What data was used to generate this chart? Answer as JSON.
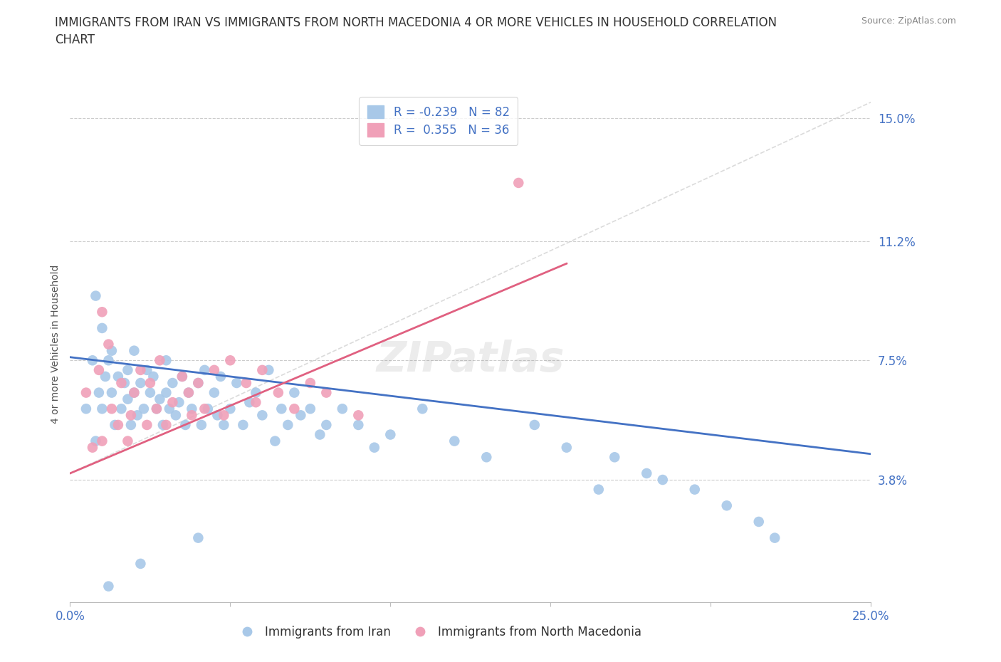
{
  "title": "IMMIGRANTS FROM IRAN VS IMMIGRANTS FROM NORTH MACEDONIA 4 OR MORE VEHICLES IN HOUSEHOLD CORRELATION\nCHART",
  "source_text": "Source: ZipAtlas.com",
  "ylabel": "4 or more Vehicles in Household",
  "xlim": [
    0.0,
    0.25
  ],
  "ylim": [
    0.0,
    0.16
  ],
  "xticks": [
    0.0,
    0.05,
    0.1,
    0.15,
    0.2,
    0.25
  ],
  "xticklabels": [
    "0.0%",
    "",
    "",
    "",
    "",
    "25.0%"
  ],
  "ytick_positions": [
    0.0,
    0.038,
    0.075,
    0.112,
    0.15
  ],
  "yticklabels": [
    "",
    "3.8%",
    "7.5%",
    "11.2%",
    "15.0%"
  ],
  "iran_R": -0.239,
  "iran_N": 82,
  "macedonia_R": 0.355,
  "macedonia_N": 36,
  "iran_color": "#a8c8e8",
  "iran_line_color": "#4472c4",
  "macedonia_color": "#f0a0b8",
  "macedonia_line_color": "#e06080",
  "legend_label_iran": "Immigrants from Iran",
  "legend_label_macedonia": "Immigrants from North Macedonia",
  "iran_line_x": [
    0.0,
    0.25
  ],
  "iran_line_y": [
    0.076,
    0.046
  ],
  "mac_line_x": [
    0.0,
    0.155
  ],
  "mac_line_y": [
    0.04,
    0.105
  ],
  "iran_x": [
    0.005,
    0.007,
    0.008,
    0.009,
    0.01,
    0.01,
    0.011,
    0.012,
    0.013,
    0.013,
    0.014,
    0.015,
    0.016,
    0.017,
    0.018,
    0.018,
    0.019,
    0.02,
    0.02,
    0.021,
    0.022,
    0.023,
    0.024,
    0.025,
    0.026,
    0.027,
    0.028,
    0.029,
    0.03,
    0.03,
    0.031,
    0.032,
    0.033,
    0.034,
    0.035,
    0.036,
    0.037,
    0.038,
    0.04,
    0.041,
    0.042,
    0.043,
    0.045,
    0.046,
    0.047,
    0.048,
    0.05,
    0.052,
    0.054,
    0.056,
    0.058,
    0.06,
    0.062,
    0.064,
    0.066,
    0.068,
    0.07,
    0.072,
    0.075,
    0.078,
    0.08,
    0.085,
    0.09,
    0.095,
    0.1,
    0.11,
    0.12,
    0.13,
    0.145,
    0.155,
    0.165,
    0.18,
    0.195,
    0.205,
    0.215,
    0.22,
    0.17,
    0.185,
    0.04,
    0.022,
    0.012,
    0.008
  ],
  "iran_y": [
    0.06,
    0.075,
    0.05,
    0.065,
    0.085,
    0.06,
    0.07,
    0.075,
    0.065,
    0.078,
    0.055,
    0.07,
    0.06,
    0.068,
    0.063,
    0.072,
    0.055,
    0.078,
    0.065,
    0.058,
    0.068,
    0.06,
    0.072,
    0.065,
    0.07,
    0.06,
    0.063,
    0.055,
    0.075,
    0.065,
    0.06,
    0.068,
    0.058,
    0.062,
    0.07,
    0.055,
    0.065,
    0.06,
    0.068,
    0.055,
    0.072,
    0.06,
    0.065,
    0.058,
    0.07,
    0.055,
    0.06,
    0.068,
    0.055,
    0.062,
    0.065,
    0.058,
    0.072,
    0.05,
    0.06,
    0.055,
    0.065,
    0.058,
    0.06,
    0.052,
    0.055,
    0.06,
    0.055,
    0.048,
    0.052,
    0.06,
    0.05,
    0.045,
    0.055,
    0.048,
    0.035,
    0.04,
    0.035,
    0.03,
    0.025,
    0.02,
    0.045,
    0.038,
    0.02,
    0.012,
    0.005,
    0.095
  ],
  "mac_x": [
    0.005,
    0.007,
    0.009,
    0.01,
    0.012,
    0.013,
    0.015,
    0.016,
    0.018,
    0.019,
    0.02,
    0.022,
    0.024,
    0.025,
    0.027,
    0.028,
    0.03,
    0.032,
    0.035,
    0.037,
    0.038,
    0.04,
    0.042,
    0.045,
    0.048,
    0.05,
    0.055,
    0.058,
    0.06,
    0.065,
    0.07,
    0.075,
    0.08,
    0.09,
    0.01,
    0.14
  ],
  "mac_y": [
    0.065,
    0.048,
    0.072,
    0.05,
    0.08,
    0.06,
    0.055,
    0.068,
    0.05,
    0.058,
    0.065,
    0.072,
    0.055,
    0.068,
    0.06,
    0.075,
    0.055,
    0.062,
    0.07,
    0.065,
    0.058,
    0.068,
    0.06,
    0.072,
    0.058,
    0.075,
    0.068,
    0.062,
    0.072,
    0.065,
    0.06,
    0.068,
    0.065,
    0.058,
    0.09,
    0.13
  ]
}
